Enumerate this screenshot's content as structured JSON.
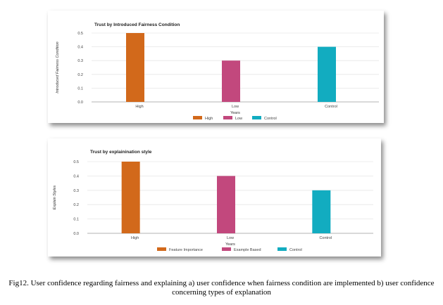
{
  "chart_data": [
    {
      "type": "bar",
      "title": "Trust by Introduced Fairness Condition",
      "xlabel": "Years",
      "ylabel": "Introduced Fairness Condition",
      "categories": [
        "High",
        "Low",
        "Control"
      ],
      "series": [
        {
          "name": "High",
          "color": "#d2691b",
          "values": [
            0.5,
            0,
            0
          ]
        },
        {
          "name": "Low",
          "color": "#c2487d",
          "values": [
            0,
            0.3,
            0
          ]
        },
        {
          "name": "Control",
          "color": "#12acc0",
          "values": [
            0,
            0,
            0.4
          ]
        }
      ],
      "yticks": [
        "0.5",
        "0.4",
        "0.3",
        "0.2",
        "0.1",
        "0.0"
      ],
      "ylim": [
        0,
        0.5
      ],
      "grid": true,
      "legend": "bottom"
    },
    {
      "type": "bar",
      "title": "Trust by explainination style",
      "xlabel": "Years",
      "ylabel": "Explain Styles",
      "categories": [
        "High",
        "Low",
        "Control"
      ],
      "series": [
        {
          "name": "Feature Importance",
          "color": "#d2691b",
          "values": [
            0.5,
            0,
            0
          ]
        },
        {
          "name": "Example Based",
          "color": "#c2487d",
          "values": [
            0,
            0.4,
            0
          ]
        },
        {
          "name": "Control",
          "color": "#12acc0",
          "values": [
            0,
            0,
            0.3
          ]
        }
      ],
      "yticks": [
        "0.5",
        "0.4",
        "0.3",
        "0.2",
        "0.1",
        "0.0"
      ],
      "ylim": [
        0,
        0.5
      ],
      "grid": true,
      "legend": "bottom"
    }
  ],
  "caption": "Fig12. User confidence regarding fairness and explaining a) user confidence when fairness condition are implemented b) user confidence concerning types of explanation"
}
